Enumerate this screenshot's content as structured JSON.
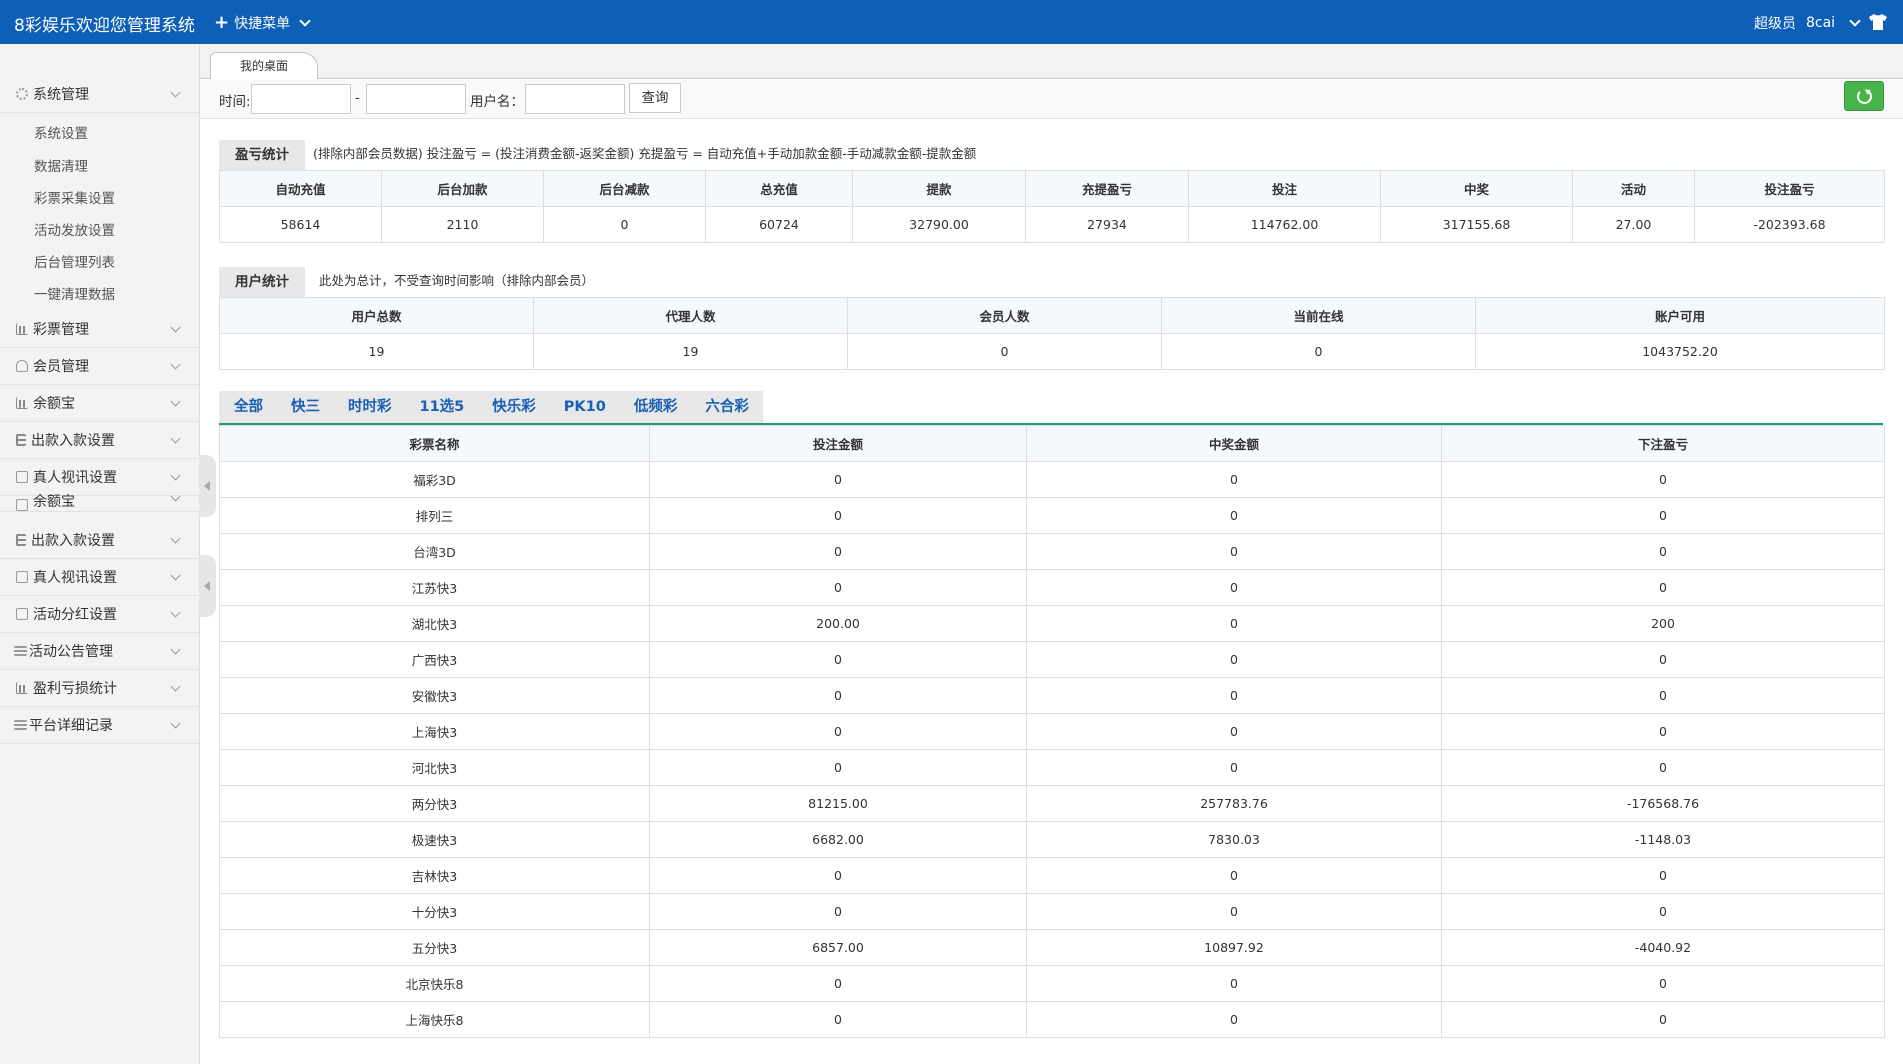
{
  "header": {
    "brand": "8彩娱乐欢迎您管理系统",
    "quick_menu": "快捷菜单",
    "role": "超级员",
    "username": "8cai"
  },
  "sidebar": {
    "groups": [
      {
        "label": "系统管理",
        "icon": "gear-icon"
      },
      {
        "label": "彩票管理",
        "icon": "chart-icon"
      },
      {
        "label": "会员管理",
        "icon": "user-icon"
      },
      {
        "label": "余额宝",
        "icon": "chart-icon"
      },
      {
        "label": "出款入款设置",
        "icon": "list-icon"
      },
      {
        "label": "真人视讯设置",
        "icon": "grid-icon"
      },
      {
        "label": "余额宝",
        "icon": "grid-icon"
      },
      {
        "label": "出款入款设置",
        "icon": "list-icon"
      },
      {
        "label": "真人视讯设置",
        "icon": "grid-icon"
      },
      {
        "label": "活动分红设置",
        "icon": "grid-icon"
      },
      {
        "label": "活动公告管理",
        "icon": "doc-icon"
      },
      {
        "label": "盈利亏损统计",
        "icon": "chart-icon"
      },
      {
        "label": "平台详细记录",
        "icon": "doc-icon"
      }
    ],
    "system_submenu": [
      "系统设置",
      "数据清理",
      "彩票采集设置",
      "活动发放设置",
      "后台管理列表",
      "一键清理数据"
    ]
  },
  "tabs": {
    "home": "我的桌面"
  },
  "search": {
    "time_label": "时间:",
    "dash": "-",
    "username_label": "用户名：",
    "query_button": "查询",
    "start_value": "",
    "end_value": "",
    "username_value": ""
  },
  "profit": {
    "title": "盈亏统计",
    "note": "(排除内部会员数据)  投注盈亏 = (投注消费金额-返奖金额)    充提盈亏 = 自动充值+手动加款金额-手动减款金额-提款金额",
    "headers": [
      "自动充值",
      "后台加款",
      "后台减款",
      "总充值",
      "提款",
      "充提盈亏",
      "投注",
      "中奖",
      "活动",
      "投注盈亏"
    ],
    "values": [
      "58614",
      "2110",
      "0",
      "60724",
      "32790.00",
      "27934",
      "114762.00",
      "317155.68",
      "27.00",
      "-202393.68"
    ]
  },
  "users": {
    "title": "用户统计",
    "note": "此处为总计，不受查询时间影响（排除内部会员）",
    "headers": [
      "用户总数",
      "代理人数",
      "会员人数",
      "当前在线",
      "账户可用"
    ],
    "values": [
      "19",
      "19",
      "0",
      "0",
      "1043752.20"
    ]
  },
  "lottery": {
    "tabs": [
      "全部",
      "快三",
      "时时彩",
      "11选5",
      "快乐彩",
      "PK10",
      "低频彩",
      "六合彩"
    ],
    "headers": [
      "彩票名称",
      "投注金额",
      "中奖金额",
      "下注盈亏"
    ],
    "rows": [
      [
        "福彩3D",
        "0",
        "0",
        "0"
      ],
      [
        "排列三",
        "0",
        "0",
        "0"
      ],
      [
        "台湾3D",
        "0",
        "0",
        "0"
      ],
      [
        "江苏快3",
        "0",
        "0",
        "0"
      ],
      [
        "湖北快3",
        "200.00",
        "0",
        "200"
      ],
      [
        "广西快3",
        "0",
        "0",
        "0"
      ],
      [
        "安徽快3",
        "0",
        "0",
        "0"
      ],
      [
        "上海快3",
        "0",
        "0",
        "0"
      ],
      [
        "河北快3",
        "0",
        "0",
        "0"
      ],
      [
        "两分快3",
        "81215.00",
        "257783.76",
        "-176568.76"
      ],
      [
        "极速快3",
        "6682.00",
        "7830.03",
        "-1148.03"
      ],
      [
        "吉林快3",
        "0",
        "0",
        "0"
      ],
      [
        "十分快3",
        "0",
        "0",
        "0"
      ],
      [
        "五分快3",
        "6857.00",
        "10897.92",
        "-4040.92"
      ],
      [
        "北京快乐8",
        "0",
        "0",
        "0"
      ],
      [
        "上海快乐8",
        "0",
        "0",
        "0"
      ]
    ]
  }
}
